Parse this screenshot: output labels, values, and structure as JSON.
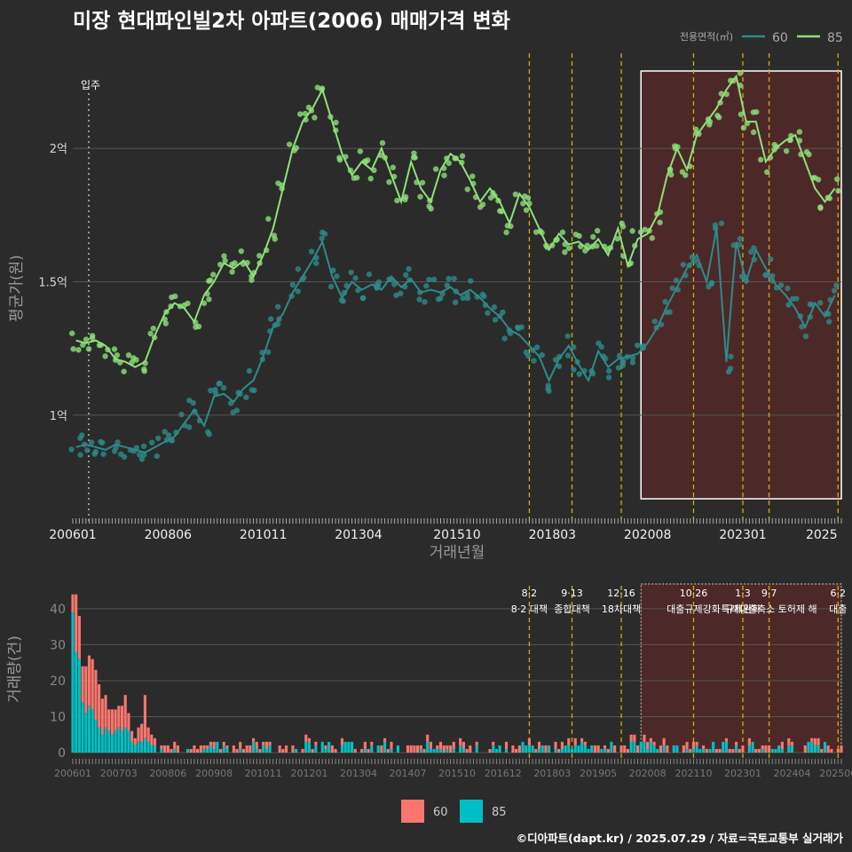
{
  "title": "미장 현대파인빌2차 아파트(2006) 매매가격 변화",
  "credit": "©디아파트(dapt.kr) / 2025.07.29 / 자료=국토교통부 실거래가",
  "colors": {
    "background": "#2b2b2b",
    "area60_line": "#2e8b8b",
    "area85_line": "#8fe07a",
    "bar60": "#f8766d",
    "bar85": "#00bfc4",
    "policy_line": "#d4b000",
    "highlight_fill": "#5a2828",
    "gridline": "#555555"
  },
  "chart_data": [
    {
      "type": "line",
      "title": "미장 현대파인빌2차 아파트(2006) 매매가격 변화",
      "xlabel": "거래년월",
      "ylabel": "평균가(원)",
      "x_ticks": [
        "200601",
        "200806",
        "201011",
        "201304",
        "201510",
        "201803",
        "202008",
        "202301",
        "2025"
      ],
      "y_ticks": [
        {
          "value": 1.0,
          "label": "1억"
        },
        {
          "value": 1.5,
          "label": "1.5억"
        },
        {
          "value": 2.0,
          "label": "2억"
        }
      ],
      "ylim": [
        0.6,
        2.35
      ],
      "legend_title": "전용면적(㎡)",
      "legend_position": "top-right",
      "annotation": "입주",
      "grid": true,
      "policy_dates": [
        "2017.08",
        "2018.09",
        "2019.12",
        "2021.10",
        "2023.01",
        "2023.09",
        "2025.06"
      ],
      "highlight_range": [
        "2020.06",
        "2025.07"
      ],
      "series": [
        {
          "name": "60",
          "points": [
            [
              "2006.02",
              0.88
            ],
            [
              "2006.05",
              0.89
            ],
            [
              "2006.08",
              0.88
            ],
            [
              "2006.11",
              0.87
            ],
            [
              "2007.02",
              0.89
            ],
            [
              "2007.05",
              0.88
            ],
            [
              "2007.08",
              0.87
            ],
            [
              "2007.11",
              0.86
            ],
            [
              "2008.02",
              0.88
            ],
            [
              "2008.05",
              0.9
            ],
            [
              "2008.08",
              0.92
            ],
            [
              "2008.11",
              0.97
            ],
            [
              "2009.02",
              1.02
            ],
            [
              "2009.05",
              0.96
            ],
            [
              "2009.08",
              1.07
            ],
            [
              "2009.11",
              1.08
            ],
            [
              "2010.02",
              1.05
            ],
            [
              "2010.05",
              1.1
            ],
            [
              "2010.08",
              1.13
            ],
            [
              "2010.11",
              1.22
            ],
            [
              "2011.02",
              1.33
            ],
            [
              "2011.05",
              1.38
            ],
            [
              "2011.08",
              1.46
            ],
            [
              "2011.11",
              1.52
            ],
            [
              "2012.02",
              1.58
            ],
            [
              "2012.05",
              1.65
            ],
            [
              "2012.08",
              1.52
            ],
            [
              "2012.11",
              1.44
            ],
            [
              "2013.02",
              1.5
            ],
            [
              "2013.05",
              1.47
            ],
            [
              "2013.08",
              1.49
            ],
            [
              "2013.11",
              1.47
            ],
            [
              "2014.02",
              1.52
            ],
            [
              "2014.05",
              1.48
            ],
            [
              "2014.08",
              1.51
            ],
            [
              "2014.11",
              1.46
            ],
            [
              "2015.02",
              1.47
            ],
            [
              "2015.05",
              1.46
            ],
            [
              "2015.08",
              1.48
            ],
            [
              "2015.11",
              1.45
            ],
            [
              "2016.02",
              1.47
            ],
            [
              "2016.05",
              1.44
            ],
            [
              "2016.08",
              1.4
            ],
            [
              "2016.11",
              1.37
            ],
            [
              "2017.02",
              1.32
            ],
            [
              "2017.05",
              1.3
            ],
            [
              "2017.08",
              1.26
            ],
            [
              "2017.11",
              1.22
            ],
            [
              "2018.02",
              1.13
            ],
            [
              "2018.05",
              1.21
            ],
            [
              "2018.08",
              1.26
            ],
            [
              "2018.11",
              1.19
            ],
            [
              "2019.02",
              1.13
            ],
            [
              "2019.05",
              1.24
            ],
            [
              "2019.08",
              1.18
            ],
            [
              "2019.11",
              1.21
            ],
            [
              "2020.02",
              1.22
            ],
            [
              "2020.05",
              1.23
            ],
            [
              "2020.08",
              1.27
            ],
            [
              "2020.11",
              1.33
            ],
            [
              "2021.02",
              1.41
            ],
            [
              "2021.05",
              1.48
            ],
            [
              "2021.08",
              1.55
            ],
            [
              "2021.11",
              1.6
            ],
            [
              "2022.02",
              1.5
            ],
            [
              "2022.05",
              1.7
            ],
            [
              "2022.08",
              1.2
            ],
            [
              "2022.11",
              1.65
            ],
            [
              "2023.02",
              1.5
            ],
            [
              "2023.05",
              1.62
            ],
            [
              "2023.08",
              1.55
            ],
            [
              "2023.11",
              1.49
            ],
            [
              "2024.02",
              1.45
            ],
            [
              "2024.05",
              1.4
            ],
            [
              "2024.08",
              1.33
            ],
            [
              "2024.11",
              1.42
            ],
            [
              "2025.02",
              1.37
            ],
            [
              "2025.05",
              1.45
            ]
          ]
        },
        {
          "name": "85",
          "points": [
            [
              "2006.02",
              1.28
            ],
            [
              "2006.05",
              1.27
            ],
            [
              "2006.08",
              1.28
            ],
            [
              "2006.11",
              1.26
            ],
            [
              "2007.02",
              1.21
            ],
            [
              "2007.05",
              1.2
            ],
            [
              "2007.08",
              1.18
            ],
            [
              "2007.11",
              1.2
            ],
            [
              "2008.02",
              1.3
            ],
            [
              "2008.05",
              1.38
            ],
            [
              "2008.08",
              1.42
            ],
            [
              "2008.11",
              1.4
            ],
            [
              "2009.02",
              1.35
            ],
            [
              "2009.05",
              1.45
            ],
            [
              "2009.08",
              1.5
            ],
            [
              "2009.11",
              1.57
            ],
            [
              "2010.02",
              1.55
            ],
            [
              "2010.05",
              1.58
            ],
            [
              "2010.08",
              1.52
            ],
            [
              "2010.11",
              1.6
            ],
            [
              "2011.02",
              1.7
            ],
            [
              "2011.05",
              1.85
            ],
            [
              "2011.08",
              2.0
            ],
            [
              "2011.11",
              2.1
            ],
            [
              "2012.02",
              2.15
            ],
            [
              "2012.05",
              2.22
            ],
            [
              "2012.08",
              2.1
            ],
            [
              "2012.11",
              1.98
            ],
            [
              "2013.02",
              1.9
            ],
            [
              "2013.05",
              1.95
            ],
            [
              "2013.08",
              1.92
            ],
            [
              "2013.11",
              2.0
            ],
            [
              "2014.02",
              1.9
            ],
            [
              "2014.05",
              1.8
            ],
            [
              "2014.08",
              1.95
            ],
            [
              "2014.11",
              1.85
            ],
            [
              "2015.02",
              1.8
            ],
            [
              "2015.05",
              1.92
            ],
            [
              "2015.08",
              1.98
            ],
            [
              "2015.11",
              1.95
            ],
            [
              "2016.02",
              1.88
            ],
            [
              "2016.05",
              1.8
            ],
            [
              "2016.08",
              1.85
            ],
            [
              "2016.11",
              1.8
            ],
            [
              "2017.02",
              1.72
            ],
            [
              "2017.05",
              1.83
            ],
            [
              "2017.08",
              1.78
            ],
            [
              "2017.11",
              1.7
            ],
            [
              "2018.02",
              1.62
            ],
            [
              "2018.05",
              1.68
            ],
            [
              "2018.08",
              1.64
            ],
            [
              "2018.11",
              1.65
            ],
            [
              "2019.02",
              1.62
            ],
            [
              "2019.05",
              1.66
            ],
            [
              "2019.08",
              1.6
            ],
            [
              "2019.11",
              1.7
            ],
            [
              "2020.02",
              1.56
            ],
            [
              "2020.05",
              1.66
            ],
            [
              "2020.08",
              1.68
            ],
            [
              "2020.11",
              1.75
            ],
            [
              "2021.02",
              1.9
            ],
            [
              "2021.05",
              2.0
            ],
            [
              "2021.08",
              1.92
            ],
            [
              "2021.11",
              2.05
            ],
            [
              "2022.02",
              2.1
            ],
            [
              "2022.05",
              2.15
            ],
            [
              "2022.08",
              2.22
            ],
            [
              "2022.11",
              2.27
            ],
            [
              "2023.02",
              2.1
            ],
            [
              "2023.05",
              2.1
            ],
            [
              "2023.08",
              1.95
            ],
            [
              "2023.11",
              2.0
            ],
            [
              "2024.02",
              2.03
            ],
            [
              "2024.05",
              2.05
            ],
            [
              "2024.08",
              1.95
            ],
            [
              "2024.11",
              1.85
            ],
            [
              "2025.02",
              1.8
            ],
            [
              "2025.05",
              1.85
            ]
          ]
        }
      ]
    },
    {
      "type": "bar",
      "ylabel": "거래량(건)",
      "ylim": [
        0,
        45
      ],
      "y_ticks": [
        0,
        10,
        20,
        30,
        40
      ],
      "x_ticks": [
        "200601",
        "200703",
        "200806",
        "200908",
        "201011",
        "201201",
        "201304",
        "201407",
        "201510",
        "201612",
        "201803",
        "201905",
        "202008",
        "202110",
        "202301",
        "202404",
        "202506"
      ],
      "stacked": true,
      "legend_position": "bottom",
      "series_names": [
        "60",
        "85"
      ],
      "policy_labels": [
        {
          "date": "2017.08",
          "date_label": "8·2",
          "text": "8·2 대책"
        },
        {
          "date": "2018.09",
          "date_label": "9·13",
          "text": "종합대책"
        },
        {
          "date": "2019.12",
          "date_label": "12·16",
          "text": "18차대책"
        },
        {
          "date": "2021.10",
          "date_label": "10·26",
          "text": "대출규제강화"
        },
        {
          "date": "2023.01",
          "date_label": "1·3",
          "text": "규제완화"
        },
        {
          "date": "2023.09",
          "date_label": "9·7",
          "text": "특례대출축소 토허제 해"
        },
        {
          "date": "2025.06",
          "date_label": "6·2",
          "text": "대출"
        }
      ],
      "monthly": {
        "2006.01": [
          5,
          39
        ],
        "2006.02": [
          16,
          28
        ],
        "2006.03": [
          12,
          26
        ],
        "2006.04": [
          10,
          14
        ],
        "2006.05": [
          13,
          11
        ],
        "2006.06": [
          14,
          13
        ],
        "2006.07": [
          14,
          12
        ],
        "2006.08": [
          14,
          9
        ],
        "2006.09": [
          12,
          7
        ],
        "2006.10": [
          10,
          5
        ],
        "2006.11": [
          9,
          7
        ],
        "2006.12": [
          6,
          6
        ],
        "2007.01": [
          7,
          5
        ],
        "2007.02": [
          6,
          6
        ],
        "2007.03": [
          6,
          7
        ],
        "2007.04": [
          7,
          6
        ],
        "2007.05": [
          9,
          7
        ],
        "2007.06": [
          5,
          6
        ],
        "2007.07": [
          3,
          3
        ],
        "2007.08": [
          2,
          2
        ],
        "2007.09": [
          4,
          3
        ],
        "2007.10": [
          5,
          3
        ],
        "2007.11": [
          12,
          4
        ],
        "2007.12": [
          4,
          3
        ],
        "2008.01": [
          3,
          2
        ],
        "2008.02": [
          2,
          2
        ]
      },
      "bar_pattern_note": ""
    }
  ]
}
